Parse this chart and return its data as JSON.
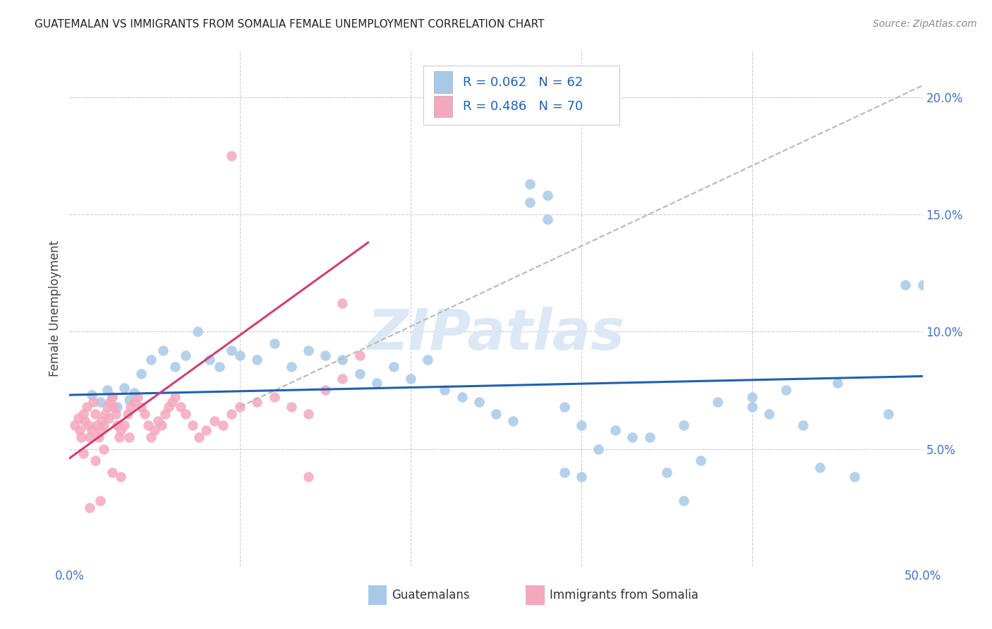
{
  "title": "GUATEMALAN VS IMMIGRANTS FROM SOMALIA FEMALE UNEMPLOYMENT CORRELATION CHART",
  "source": "Source: ZipAtlas.com",
  "ylabel": "Female Unemployment",
  "watermark": "ZIPatlas",
  "blue_R": 0.062,
  "blue_N": 62,
  "pink_R": 0.486,
  "pink_N": 70,
  "blue_color": "#a8c8e8",
  "pink_color": "#f4a8be",
  "blue_line_color": "#2060b0",
  "pink_line_color": "#d04070",
  "background_color": "#ffffff",
  "grid_color": "#cccccc",
  "xlim": [
    0.0,
    0.5
  ],
  "ylim": [
    0.0,
    0.22
  ],
  "yticks": [
    0.05,
    0.1,
    0.15,
    0.2
  ],
  "ytick_labels": [
    "5.0%",
    "10.0%",
    "15.0%",
    "20.0%"
  ],
  "blue_trend_y_start": 0.073,
  "blue_trend_y_end": 0.081,
  "pink_trend_x_start": 0.0,
  "pink_trend_x_end": 0.175,
  "pink_trend_y_start": 0.046,
  "pink_trend_y_end": 0.138,
  "gray_trend_x_start": 0.1,
  "gray_trend_x_end": 0.5,
  "gray_trend_y_start": 0.068,
  "gray_trend_y_end": 0.205,
  "blue_x": [
    0.013,
    0.018,
    0.022,
    0.025,
    0.028,
    0.032,
    0.035,
    0.038,
    0.042,
    0.048,
    0.055,
    0.062,
    0.068,
    0.075,
    0.082,
    0.088,
    0.095,
    0.1,
    0.11,
    0.12,
    0.13,
    0.14,
    0.15,
    0.16,
    0.17,
    0.18,
    0.19,
    0.2,
    0.21,
    0.22,
    0.23,
    0.24,
    0.25,
    0.26,
    0.27,
    0.28,
    0.29,
    0.3,
    0.32,
    0.34,
    0.36,
    0.38,
    0.4,
    0.42,
    0.44,
    0.46,
    0.48,
    0.5,
    0.27,
    0.28,
    0.49,
    0.3,
    0.35,
    0.37,
    0.4,
    0.36,
    0.33,
    0.31,
    0.29,
    0.45,
    0.43,
    0.41
  ],
  "blue_y": [
    0.073,
    0.07,
    0.075,
    0.072,
    0.068,
    0.076,
    0.071,
    0.074,
    0.082,
    0.088,
    0.092,
    0.085,
    0.09,
    0.1,
    0.088,
    0.085,
    0.092,
    0.09,
    0.088,
    0.095,
    0.085,
    0.092,
    0.09,
    0.088,
    0.082,
    0.078,
    0.085,
    0.08,
    0.088,
    0.075,
    0.072,
    0.07,
    0.065,
    0.062,
    0.163,
    0.158,
    0.068,
    0.06,
    0.058,
    0.055,
    0.06,
    0.07,
    0.068,
    0.075,
    0.042,
    0.038,
    0.065,
    0.12,
    0.155,
    0.148,
    0.12,
    0.038,
    0.04,
    0.045,
    0.072,
    0.028,
    0.055,
    0.05,
    0.04,
    0.078,
    0.06,
    0.065
  ],
  "pink_x": [
    0.003,
    0.005,
    0.006,
    0.007,
    0.008,
    0.009,
    0.01,
    0.011,
    0.012,
    0.013,
    0.014,
    0.015,
    0.016,
    0.017,
    0.018,
    0.019,
    0.02,
    0.021,
    0.022,
    0.023,
    0.024,
    0.025,
    0.026,
    0.027,
    0.028,
    0.029,
    0.03,
    0.032,
    0.034,
    0.036,
    0.038,
    0.04,
    0.042,
    0.044,
    0.046,
    0.048,
    0.05,
    0.052,
    0.054,
    0.056,
    0.058,
    0.06,
    0.062,
    0.065,
    0.068,
    0.072,
    0.076,
    0.08,
    0.085,
    0.09,
    0.095,
    0.1,
    0.11,
    0.12,
    0.13,
    0.14,
    0.15,
    0.16,
    0.17,
    0.095,
    0.012,
    0.018,
    0.025,
    0.03,
    0.008,
    0.015,
    0.02,
    0.035,
    0.14,
    0.16
  ],
  "pink_y": [
    0.06,
    0.063,
    0.058,
    0.055,
    0.065,
    0.062,
    0.068,
    0.06,
    0.055,
    0.058,
    0.07,
    0.065,
    0.06,
    0.055,
    0.058,
    0.062,
    0.06,
    0.065,
    0.068,
    0.063,
    0.07,
    0.072,
    0.068,
    0.065,
    0.06,
    0.055,
    0.058,
    0.06,
    0.065,
    0.068,
    0.07,
    0.072,
    0.068,
    0.065,
    0.06,
    0.055,
    0.058,
    0.062,
    0.06,
    0.065,
    0.068,
    0.07,
    0.072,
    0.068,
    0.065,
    0.06,
    0.055,
    0.058,
    0.062,
    0.06,
    0.065,
    0.068,
    0.07,
    0.072,
    0.068,
    0.065,
    0.075,
    0.08,
    0.09,
    0.175,
    0.025,
    0.028,
    0.04,
    0.038,
    0.048,
    0.045,
    0.05,
    0.055,
    0.038,
    0.112
  ]
}
